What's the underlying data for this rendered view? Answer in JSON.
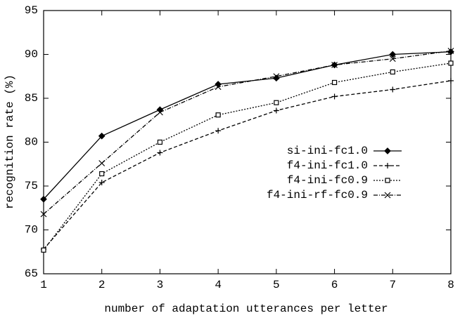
{
  "chart_data": {
    "type": "line",
    "xlabel": "number of adaptation utterances per letter",
    "ylabel": "recognition rate (%)",
    "x": [
      1,
      2,
      3,
      4,
      5,
      6,
      7,
      8
    ],
    "xlim": [
      1,
      8
    ],
    "xticks": [
      1,
      2,
      3,
      4,
      5,
      6,
      7,
      8
    ],
    "ylim": [
      65,
      95
    ],
    "yticks": [
      65,
      70,
      75,
      80,
      85,
      90,
      95
    ],
    "legend": "center right",
    "series": [
      {
        "name": "si-ini-fc1.0",
        "color": "#000000",
        "marker": "diamond",
        "dash": "solid",
        "values": [
          73.5,
          80.7,
          83.7,
          86.6,
          87.3,
          88.8,
          90.0,
          90.3
        ]
      },
      {
        "name": "f4-ini-fc1.0",
        "color": "#000000",
        "marker": "plus",
        "dash": "dashed",
        "values": [
          67.8,
          75.4,
          78.8,
          81.3,
          83.6,
          85.2,
          86.0,
          87.0
        ]
      },
      {
        "name": "f4-ini-fc0.9",
        "color": "#000000",
        "marker": "square",
        "dash": "dotted",
        "values": [
          67.7,
          76.4,
          80.0,
          83.1,
          84.5,
          86.8,
          88.0,
          89.0
        ]
      },
      {
        "name": "f4-ini-rf-fc0.9",
        "color": "#000000",
        "marker": "cross",
        "dash": "dashdot",
        "values": [
          71.8,
          77.6,
          83.4,
          86.3,
          87.5,
          88.8,
          89.5,
          90.4
        ]
      }
    ]
  }
}
